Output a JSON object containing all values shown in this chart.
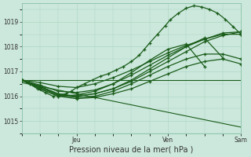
{
  "xlabel": "Pression niveau de la mer( hPa )",
  "bg_color": "#cce8dc",
  "plot_bg_color": "#cce8dc",
  "grid_color": "#a8d4c0",
  "line_color": "#1a5c1a",
  "ylim": [
    1014.6,
    1019.75
  ],
  "xlim": [
    0,
    84
  ],
  "ytick_values": [
    1015,
    1016,
    1017,
    1018,
    1019
  ],
  "xtick_positions": [
    21,
    56,
    84
  ],
  "xtick_labels": [
    "Jeu",
    "Ven",
    "Sam"
  ],
  "vgrid_minor": [
    0,
    7,
    14,
    21,
    28,
    35,
    42,
    49,
    56,
    63,
    70,
    77,
    84
  ],
  "hgrid_minor": [
    1014.5,
    1015,
    1015.5,
    1016,
    1016.5,
    1017,
    1017.5,
    1018,
    1018.5,
    1019,
    1019.5
  ],
  "series": [
    {
      "x": [
        0,
        3,
        6,
        9,
        12,
        14,
        17,
        19,
        21,
        24,
        27,
        30,
        33,
        36,
        39,
        42,
        45,
        47,
        49,
        52,
        55,
        57,
        60,
        63,
        66,
        69,
        72,
        75,
        78,
        81,
        84
      ],
      "y": [
        1016.65,
        1016.5,
        1016.3,
        1016.15,
        1016.0,
        1016.05,
        1016.1,
        1016.2,
        1016.35,
        1016.5,
        1016.65,
        1016.8,
        1016.9,
        1017.05,
        1017.2,
        1017.4,
        1017.65,
        1017.9,
        1018.15,
        1018.5,
        1018.85,
        1019.1,
        1019.35,
        1019.55,
        1019.65,
        1019.6,
        1019.5,
        1019.35,
        1019.1,
        1018.8,
        1018.5
      ],
      "marked": true,
      "lw": 0.9
    },
    {
      "x": [
        0,
        7,
        14,
        21,
        28,
        35,
        42,
        49,
        56,
        63,
        70,
        77,
        84
      ],
      "y": [
        1016.65,
        1016.4,
        1016.1,
        1016.0,
        1016.1,
        1016.3,
        1016.6,
        1017.0,
        1017.4,
        1017.8,
        1018.2,
        1018.45,
        1018.6
      ],
      "marked": true,
      "lw": 0.9
    },
    {
      "x": [
        0,
        7,
        14,
        21,
        28,
        35,
        42,
        49,
        56,
        63,
        70,
        77
      ],
      "y": [
        1016.65,
        1016.4,
        1016.05,
        1016.0,
        1016.1,
        1016.3,
        1016.65,
        1017.1,
        1017.55,
        1018.0,
        1018.35,
        1017.55
      ],
      "marked": true,
      "lw": 0.9
    },
    {
      "x": [
        0,
        7,
        14,
        21,
        28,
        35,
        42,
        49,
        56,
        63,
        70
      ],
      "y": [
        1016.65,
        1016.3,
        1016.0,
        1016.05,
        1016.2,
        1016.5,
        1016.95,
        1017.45,
        1017.9,
        1018.1,
        1017.2
      ],
      "marked": true,
      "lw": 0.9
    },
    {
      "x": [
        0,
        7,
        14,
        21,
        28,
        35,
        42,
        49,
        56,
        63,
        70,
        77,
        84
      ],
      "y": [
        1016.65,
        1016.35,
        1016.05,
        1015.95,
        1016.0,
        1016.2,
        1016.5,
        1016.85,
        1017.2,
        1017.5,
        1017.7,
        1017.7,
        1017.5
      ],
      "marked": true,
      "lw": 0.9
    },
    {
      "x": [
        0,
        84
      ],
      "y": [
        1016.65,
        1016.65
      ],
      "marked": false,
      "lw": 0.8
    },
    {
      "x": [
        0,
        84
      ],
      "y": [
        1016.55,
        1014.75
      ],
      "marked": false,
      "lw": 0.8
    },
    {
      "x": [
        0,
        7,
        14,
        21,
        28,
        35,
        42,
        49,
        56,
        63,
        70,
        77,
        84
      ],
      "y": [
        1016.65,
        1016.3,
        1016.0,
        1015.9,
        1015.95,
        1016.1,
        1016.3,
        1016.6,
        1016.9,
        1017.2,
        1017.4,
        1017.5,
        1017.3
      ],
      "marked": true,
      "lw": 0.9
    },
    {
      "x": [
        0,
        7,
        14,
        21,
        28,
        35,
        42,
        49,
        56,
        63,
        70,
        77,
        84
      ],
      "y": [
        1016.65,
        1016.55,
        1016.4,
        1016.35,
        1016.5,
        1016.75,
        1017.05,
        1017.4,
        1017.75,
        1018.05,
        1018.3,
        1018.55,
        1018.6
      ],
      "marked": true,
      "lw": 0.9
    },
    {
      "x": [
        0,
        7,
        14,
        21,
        28,
        35,
        42,
        49,
        56,
        63,
        70,
        77,
        84
      ],
      "y": [
        1016.65,
        1016.45,
        1016.2,
        1016.15,
        1016.25,
        1016.5,
        1016.85,
        1017.25,
        1017.65,
        1018.0,
        1018.3,
        1018.5,
        1018.5
      ],
      "marked": true,
      "lw": 0.9
    }
  ]
}
